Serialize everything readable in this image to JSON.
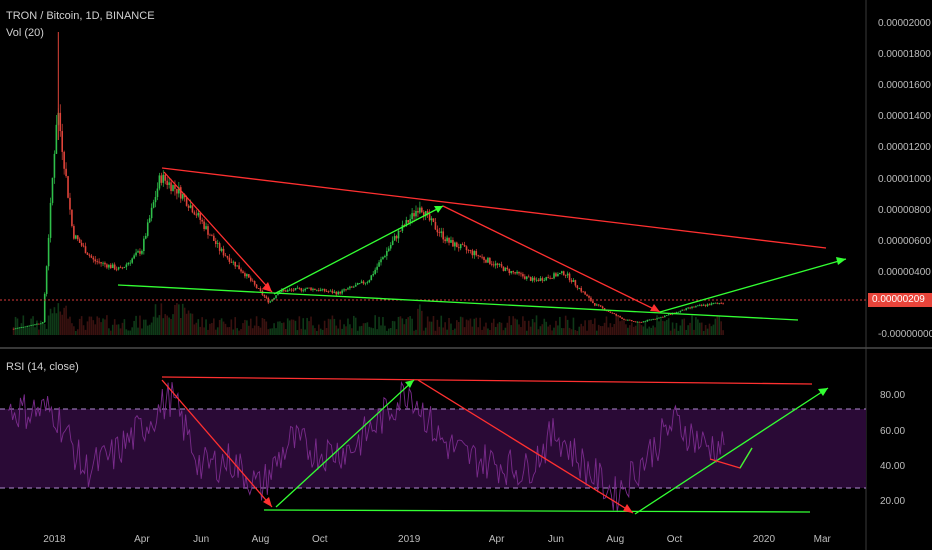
{
  "header": {
    "symbol": "TRON / Bitcoin, 1D, BINANCE",
    "volume": "Vol (20)"
  },
  "rsi_header": "RSI (14, close)",
  "price_badge": "0.00000209",
  "colors": {
    "background": "#000000",
    "trend_red": "#ff3030",
    "trend_green": "#33ff33",
    "rsi_band": "#2a0a36",
    "rsi_line": "#7a2b8c",
    "price_line": "#d83a3a"
  },
  "chart_data": [
    {
      "type": "line",
      "title": "TRON / Bitcoin, 1D, BINANCE",
      "y_ticks": [
        "0.00002000",
        "0.00001800",
        "0.00001600",
        "0.00001400",
        "0.00001200",
        "0.00001000",
        "0.00000800",
        "0.00000600",
        "0.00000400",
        "0.00000200",
        "-0.00000000"
      ],
      "ylim": [
        0,
        2e-05
      ],
      "x_ticks": [
        "2018",
        "Apr",
        "Jun",
        "Aug",
        "Oct",
        "2019",
        "Apr",
        "Jun",
        "Aug",
        "Oct",
        "2020",
        "Mar"
      ],
      "last_price": 2.09e-06,
      "series": [
        {
          "x": [
            "2017-11-20",
            "2017-12-20",
            "2018-01-04",
            "2018-01-20",
            "2018-02-10",
            "2018-03-10",
            "2018-04-01",
            "2018-04-20",
            "2018-05-10",
            "2018-05-25",
            "2018-06-20",
            "2018-07-15",
            "2018-08-10",
            "2018-08-20",
            "2018-09-20",
            "2018-10-20",
            "2018-11-20",
            "2018-12-20",
            "2019-01-05",
            "2019-01-12",
            "2019-01-20",
            "2019-02-10",
            "2019-03-10",
            "2019-04-10",
            "2019-05-10",
            "2019-06-10",
            "2019-07-10",
            "2019-08-10",
            "2019-08-25",
            "2019-09-20",
            "2019-10-20",
            "2019-11-20"
          ],
          "values": [
            4e-07,
            8e-07,
            1.47e-05,
            6.5e-06,
            4.8e-06,
            4.2e-06,
            5.5e-06,
            1.02e-05,
            9.2e-06,
            8e-06,
            5.5e-06,
            4e-06,
            2.1e-06,
            2.8e-06,
            3e-06,
            2.7e-06,
            3.5e-06,
            6.5e-06,
            7.7e-06,
            8.4e-06,
            7.5e-06,
            6e-06,
            5.2e-06,
            4.2e-06,
            3.5e-06,
            4e-06,
            2e-06,
            1e-06,
            8e-07,
            1.2e-06,
            1.8e-06,
            2.1e-06
          ]
        }
      ]
    },
    {
      "type": "line",
      "title": "RSI (14, close)",
      "y_ticks": [
        "80.00",
        "60.00",
        "40.00",
        "20.00"
      ],
      "ylim": [
        10,
        95
      ],
      "band": [
        30,
        70
      ],
      "series": [
        {
          "x": [
            "2018-01-01",
            "2018-02-01",
            "2018-03-01",
            "2018-04-01",
            "2018-05-01",
            "2018-06-01",
            "2018-07-01",
            "2018-08-01",
            "2018-09-01",
            "2018-10-01",
            "2018-11-01",
            "2018-12-01",
            "2019-01-01",
            "2019-02-01",
            "2019-03-01",
            "2019-04-01",
            "2019-05-01",
            "2019-06-01",
            "2019-07-01",
            "2019-08-01",
            "2019-09-01",
            "2019-10-01",
            "2019-11-01"
          ],
          "values": [
            72,
            38,
            46,
            62,
            80,
            40,
            44,
            28,
            55,
            48,
            50,
            66,
            85,
            56,
            46,
            42,
            38,
            60,
            40,
            24,
            45,
            66,
            52
          ]
        }
      ]
    }
  ]
}
